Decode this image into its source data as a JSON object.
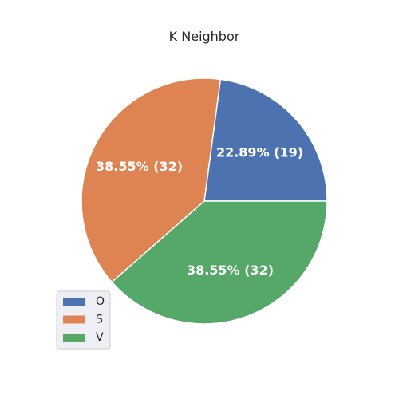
{
  "chart_data": {
    "type": "pie",
    "title": "K Neighbor",
    "categories": [
      "O",
      "S",
      "V"
    ],
    "values": [
      19,
      32,
      32
    ],
    "labels": [
      "22.89%  (19)",
      "38.55%  (32)",
      "38.55%  (32)"
    ],
    "colors": [
      "#4c72b0",
      "#dd8452",
      "#55a868"
    ],
    "legend": {
      "position": "lower-left",
      "entries": [
        "O",
        "S",
        "V"
      ]
    }
  }
}
